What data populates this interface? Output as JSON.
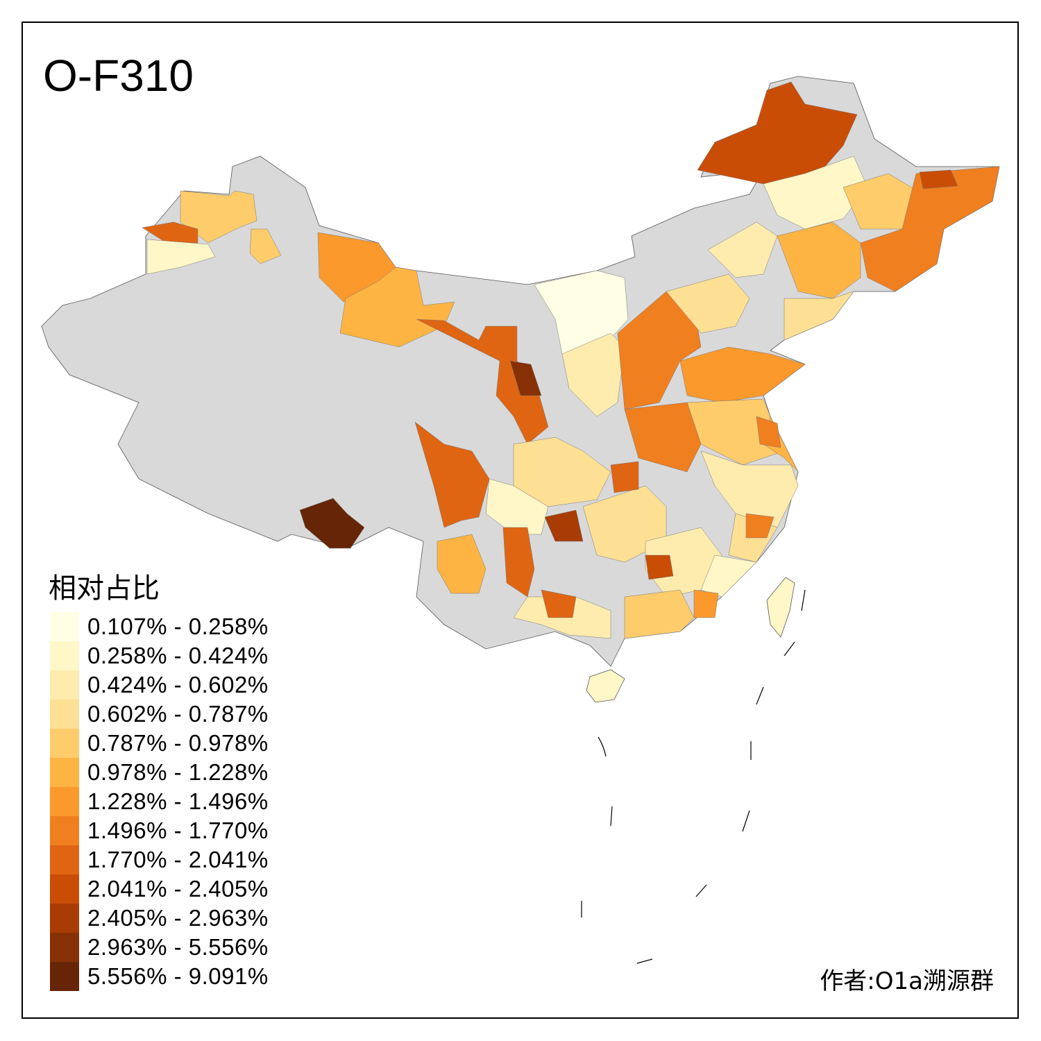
{
  "title": "O-F310",
  "legend": {
    "title": "相对占比",
    "classes": [
      {
        "label": "0.107% - 0.258%",
        "color": "#FFFFE5"
      },
      {
        "label": "0.258% - 0.424%",
        "color": "#FFF7C8"
      },
      {
        "label": "0.424% - 0.602%",
        "color": "#FEECAE"
      },
      {
        "label": "0.602% - 0.787%",
        "color": "#FEE095"
      },
      {
        "label": "0.787% - 0.978%",
        "color": "#FECC6A"
      },
      {
        "label": "0.978% - 1.228%",
        "color": "#FEB443"
      },
      {
        "label": "1.228% - 1.496%",
        "color": "#FB992C"
      },
      {
        "label": "1.496% - 1.770%",
        "color": "#F07F1F"
      },
      {
        "label": "1.770% - 2.041%",
        "color": "#E06513"
      },
      {
        "label": "2.041% - 2.405%",
        "color": "#CA4D06"
      },
      {
        "label": "2.405% - 2.963%",
        "color": "#A83C04"
      },
      {
        "label": "2.963% - 5.556%",
        "color": "#873005"
      },
      {
        "label": "5.556% - 9.091%",
        "color": "#662506"
      }
    ]
  },
  "no_data_color": "#D9D9D9",
  "credit": "作者:O1a溯源群"
}
